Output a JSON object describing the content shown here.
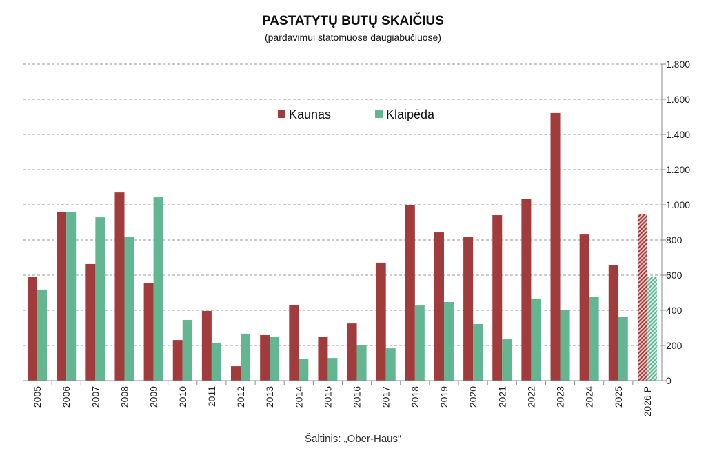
{
  "chart_data": {
    "type": "bar",
    "title": "PASTATYTŲ BUTŲ SKAIČIUS",
    "subtitle": "(pardavimui statomuose daugiabučiuose)",
    "source": "Šaltinis: „Ober-Haus“",
    "xlabel": "",
    "ylabel": "",
    "ylim": [
      0,
      1800
    ],
    "yticks": [
      0,
      200,
      400,
      600,
      800,
      1000,
      1200,
      1400,
      1600,
      1800
    ],
    "ytick_labels": [
      "0",
      "200",
      "400",
      "600",
      "800",
      "1.000",
      "1.200",
      "1.400",
      "1.600",
      "1.800"
    ],
    "grid": true,
    "legend_position": "top-center",
    "categories": [
      "2005",
      "2006",
      "2007",
      "2008",
      "2009",
      "2010",
      "2011",
      "2012",
      "2013",
      "2014",
      "2015",
      "2016",
      "2017",
      "2018",
      "2019",
      "2020",
      "2021",
      "2022",
      "2023",
      "2024",
      "2025",
      "2026 P"
    ],
    "forecast_categories": [
      "2026 P"
    ],
    "series": [
      {
        "name": "Kaunas",
        "color": "#a23b3b",
        "values": [
          590,
          960,
          663,
          1070,
          553,
          231,
          396,
          82,
          259,
          431,
          251,
          325,
          671,
          996,
          843,
          816,
          941,
          1035,
          1522,
          831,
          655,
          945
        ]
      },
      {
        "name": "Klaipėda",
        "color": "#62b692",
        "values": [
          518,
          957,
          929,
          816,
          1043,
          345,
          216,
          267,
          247,
          122,
          129,
          200,
          184,
          427,
          447,
          322,
          235,
          467,
          400,
          478,
          361,
          592
        ]
      }
    ]
  }
}
